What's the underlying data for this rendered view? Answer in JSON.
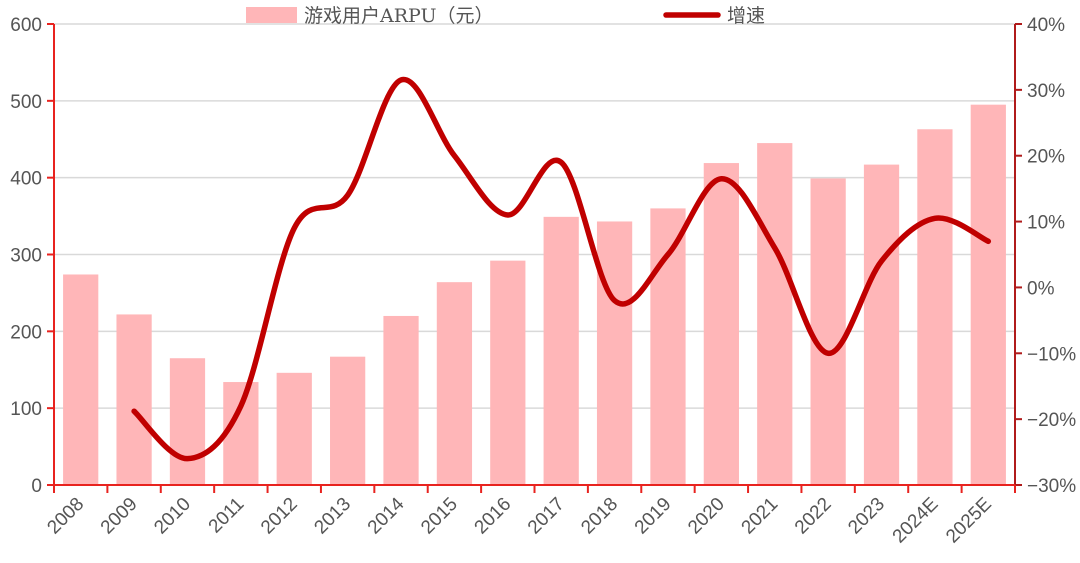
{
  "chart_data": {
    "type": "bar+line",
    "title": "",
    "categories": [
      "2008",
      "2009",
      "2010",
      "2011",
      "2012",
      "2013",
      "2014",
      "2015",
      "2016",
      "2017",
      "2018",
      "2019",
      "2020",
      "2021",
      "2022",
      "2023",
      "2024E",
      "2025E"
    ],
    "series": [
      {
        "name": "游戏用户ARPU（元）",
        "type": "bar",
        "axis": "left",
        "color": "#ffb6b8",
        "values": [
          274,
          222,
          165,
          134,
          146,
          167,
          220,
          264,
          292,
          349,
          343,
          360,
          419,
          445,
          399,
          417,
          463,
          495
        ]
      },
      {
        "name": "增速",
        "type": "line",
        "axis": "right",
        "color": "#c00000",
        "unit": "%",
        "values": [
          null,
          -18.8,
          -26,
          -18,
          9,
          14,
          31.5,
          20,
          11,
          19,
          -2,
          5,
          16.5,
          6,
          -10,
          4,
          10.5,
          7
        ]
      }
    ],
    "left_axis": {
      "ylim": [
        0,
        600
      ],
      "ticks": [
        "0",
        "100",
        "200",
        "300",
        "400",
        "500",
        "600"
      ],
      "color": "#e8231f"
    },
    "right_axis": {
      "ylim": [
        -30,
        40
      ],
      "ticks": [
        "−30%",
        "−20%",
        "−10%",
        "0%",
        "10%",
        "20%",
        "30%",
        "40%"
      ],
      "color": "#b01b1b"
    },
    "xlabel": "",
    "ylabel": "",
    "grid": true,
    "legend_position": "top"
  },
  "legend": {
    "bar_label": "游戏用户ARPU（元）",
    "line_label": "增速"
  }
}
